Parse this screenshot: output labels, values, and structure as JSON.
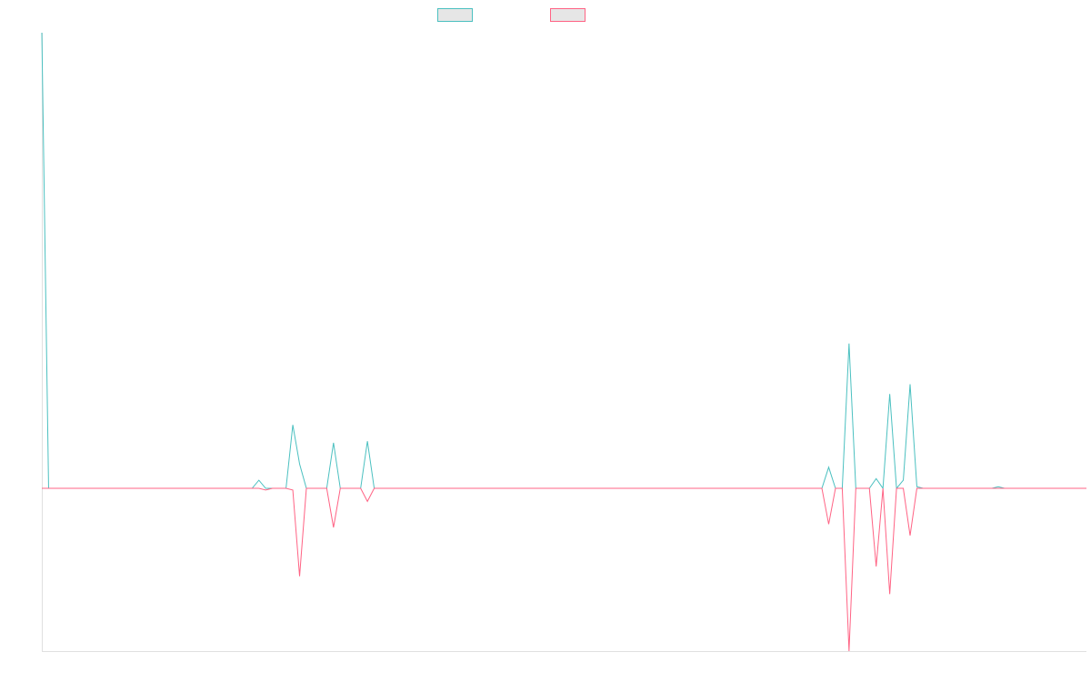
{
  "chart_data": {
    "type": "line",
    "title": "",
    "xlabel": "",
    "ylabel": "",
    "grid": false,
    "legend_position": "top-center",
    "ylim": [
      -1.0,
      2.8
    ],
    "x": [
      0,
      1,
      2,
      3,
      4,
      5,
      6,
      7,
      8,
      9,
      10,
      11,
      12,
      13,
      14,
      15,
      16,
      17,
      18,
      19,
      20,
      21,
      22,
      23,
      24,
      25,
      26,
      27,
      28,
      29,
      30,
      31,
      32,
      33,
      34,
      35,
      36,
      37,
      38,
      39,
      40,
      41,
      42,
      43,
      44,
      45,
      46,
      47,
      48,
      49,
      50,
      51,
      52,
      53,
      54,
      55,
      56,
      57,
      58,
      59,
      60,
      61,
      62,
      63,
      64,
      65,
      66,
      67,
      68,
      69,
      70,
      71,
      72,
      73,
      74,
      75,
      76,
      77,
      78,
      79,
      80,
      81,
      82,
      83,
      84,
      85,
      86,
      87,
      88,
      89,
      90,
      91,
      92,
      93,
      94,
      95,
      96,
      97,
      98,
      99,
      100,
      101,
      102,
      103,
      104,
      105,
      106,
      107,
      108,
      109,
      110,
      111,
      112,
      113,
      114,
      115,
      116,
      117,
      118,
      119,
      120,
      121,
      122,
      123,
      124,
      125,
      126,
      127,
      128,
      129,
      130,
      131,
      132,
      133,
      134,
      135,
      136,
      137,
      138,
      139,
      140,
      141,
      142,
      143,
      144,
      145,
      146,
      147,
      148,
      149,
      150,
      151,
      152,
      153,
      154
    ],
    "series": [
      {
        "color": "#4bc0c0",
        "values": [
          2.8,
          0,
          0,
          0,
          0,
          0,
          0,
          0,
          0,
          0,
          0,
          0,
          0,
          0,
          0,
          0,
          0,
          0,
          0,
          0,
          0,
          0,
          0,
          0,
          0,
          0,
          0,
          0,
          0,
          0,
          0,
          0,
          0.05,
          0,
          0,
          0,
          0,
          0.39,
          0.15,
          0,
          0,
          0,
          0,
          0.28,
          0,
          0,
          0,
          0,
          0.29,
          0,
          0,
          0,
          0,
          0,
          0,
          0,
          0,
          0,
          0,
          0,
          0,
          0,
          0,
          0,
          0,
          0,
          0,
          0,
          0,
          0,
          0,
          0,
          0,
          0,
          0,
          0,
          0,
          0,
          0,
          0,
          0,
          0,
          0,
          0,
          0,
          0,
          0,
          0,
          0,
          0,
          0,
          0,
          0,
          0,
          0,
          0,
          0,
          0,
          0,
          0,
          0,
          0,
          0,
          0,
          0,
          0,
          0,
          0,
          0,
          0,
          0,
          0,
          0,
          0,
          0,
          0,
          0.13,
          0,
          0,
          0.89,
          0,
          0,
          0,
          0.06,
          0,
          0.58,
          0,
          0.05,
          0.64,
          0.01,
          0,
          0,
          0,
          0,
          0,
          0,
          0,
          0,
          0,
          0,
          0,
          0.01,
          0,
          0,
          0,
          0,
          0,
          0,
          0,
          0,
          0,
          0,
          0,
          0,
          0
        ],
        "border_width": 1
      },
      {
        "color": "#ff6384",
        "values": [
          0,
          0,
          0,
          0,
          0,
          0,
          0,
          0,
          0,
          0,
          0,
          0,
          0,
          0,
          0,
          0,
          0,
          0,
          0,
          0,
          0,
          0,
          0,
          0,
          0,
          0,
          0,
          0,
          0,
          0,
          0,
          0,
          0,
          -0.01,
          0,
          0,
          0,
          -0.01,
          -0.54,
          0,
          0,
          0,
          0,
          -0.24,
          0,
          0,
          0,
          0,
          -0.08,
          0,
          0,
          0,
          0,
          0,
          0,
          0,
          0,
          0,
          0,
          0,
          0,
          0,
          0,
          0,
          0,
          0,
          0,
          0,
          0,
          0,
          0,
          0,
          0,
          0,
          0,
          0,
          0,
          0,
          0,
          0,
          0,
          0,
          0,
          0,
          0,
          0,
          0,
          0,
          0,
          0,
          0,
          0,
          0,
          0,
          0,
          0,
          0,
          0,
          0,
          0,
          0,
          0,
          0,
          0,
          0,
          0,
          0,
          0,
          0,
          0,
          0,
          0,
          0,
          0,
          0,
          0,
          -0.22,
          0,
          0,
          -1.0,
          0,
          0,
          0,
          -0.48,
          0,
          -0.65,
          0,
          0,
          -0.29,
          0,
          0,
          0,
          0,
          0,
          0,
          0,
          0,
          0,
          0,
          0,
          0,
          0,
          0,
          0,
          0,
          0,
          0,
          0,
          0,
          0,
          0,
          0,
          0,
          0,
          0
        ],
        "border_width": 1
      }
    ]
  }
}
